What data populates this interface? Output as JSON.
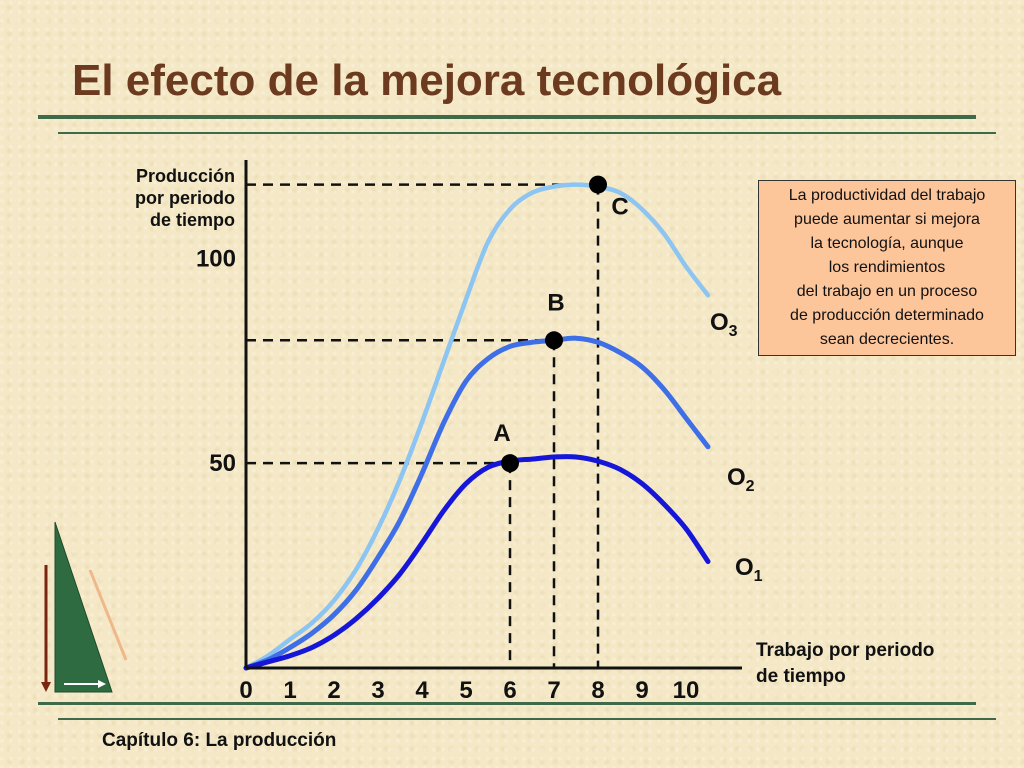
{
  "title": "El efecto de la mejora tecnológica",
  "footer": "Capítulo 6: La producción",
  "note_lines": [
    "La productividad del trabajo",
    "puede aumentar si  mejora",
    "la tecnología, aunque",
    "los rendimientos",
    "del trabajo en un proceso",
    "de producción determinado",
    "sean decrecientes."
  ],
  "colors": {
    "title": "#6b3a1f",
    "rule": "#3f6a4a",
    "O1": "#1616d8",
    "O2": "#3f6fe6",
    "O3": "#8cc4f2",
    "note_fill": "#fdc59a"
  },
  "chart_data": {
    "type": "line",
    "title": "",
    "ylabel_lines": [
      "Producción",
      "por periodo",
      "de  tiempo"
    ],
    "xlabel_lines": [
      "Trabajo por periodo",
      "de  tiempo"
    ],
    "x_ticks": [
      "0",
      "1",
      "2",
      "3",
      "4",
      "5",
      "6",
      "7",
      "8",
      "9",
      "10"
    ],
    "y_ticks": [
      {
        "value": 50,
        "label": "50"
      },
      {
        "value": 100,
        "label": "100"
      }
    ],
    "xlim": [
      0,
      10
    ],
    "ylim": [
      0,
      124
    ],
    "grid": false,
    "series": [
      {
        "name": "O1",
        "label_main": "O",
        "label_sub": "1",
        "x": [
          0,
          0.5,
          1,
          1.5,
          2,
          2.5,
          3,
          3.5,
          4,
          4.5,
          5,
          5.5,
          6,
          6.5,
          7,
          7.5,
          8,
          8.5,
          9,
          9.5,
          10,
          10.5
        ],
        "y": [
          0,
          1.5,
          3,
          5,
          8,
          12,
          17,
          23,
          30.5,
          38.5,
          45,
          49,
          50.5,
          51,
          51.5,
          51.5,
          50.5,
          48.5,
          45,
          40,
          34,
          26
        ]
      },
      {
        "name": "O2",
        "label_main": "O",
        "label_sub": "2",
        "x": [
          0,
          0.5,
          1,
          1.5,
          2,
          2.5,
          3,
          3.5,
          4,
          4.5,
          5,
          5.5,
          6,
          6.5,
          7,
          7.5,
          8,
          8.5,
          9,
          9.5,
          10,
          10.5
        ],
        "y": [
          0,
          2,
          5,
          8.5,
          13,
          19,
          27,
          36,
          47.5,
          60,
          70,
          75.5,
          78.5,
          79.5,
          80,
          80.5,
          79.5,
          77,
          73.5,
          68,
          61,
          54
        ]
      },
      {
        "name": "O3",
        "label_main": "O",
        "label_sub": "3",
        "x": [
          0,
          0.5,
          1,
          1.5,
          2,
          2.5,
          3,
          3.5,
          4,
          4.5,
          5,
          5.5,
          6,
          6.5,
          7,
          7.5,
          8,
          8.5,
          9,
          9.5,
          10,
          10.5
        ],
        "y": [
          0,
          3,
          7,
          11,
          16.5,
          24,
          34,
          46,
          60,
          75,
          90,
          104,
          112,
          116,
          117.5,
          118,
          117.5,
          116,
          112,
          106,
          98,
          91
        ]
      }
    ],
    "points": [
      {
        "label": "A",
        "x": 6,
        "y": 50
      },
      {
        "label": "B",
        "x": 7,
        "y": 80
      },
      {
        "label": "C",
        "x": 8,
        "y": 118
      }
    ]
  }
}
